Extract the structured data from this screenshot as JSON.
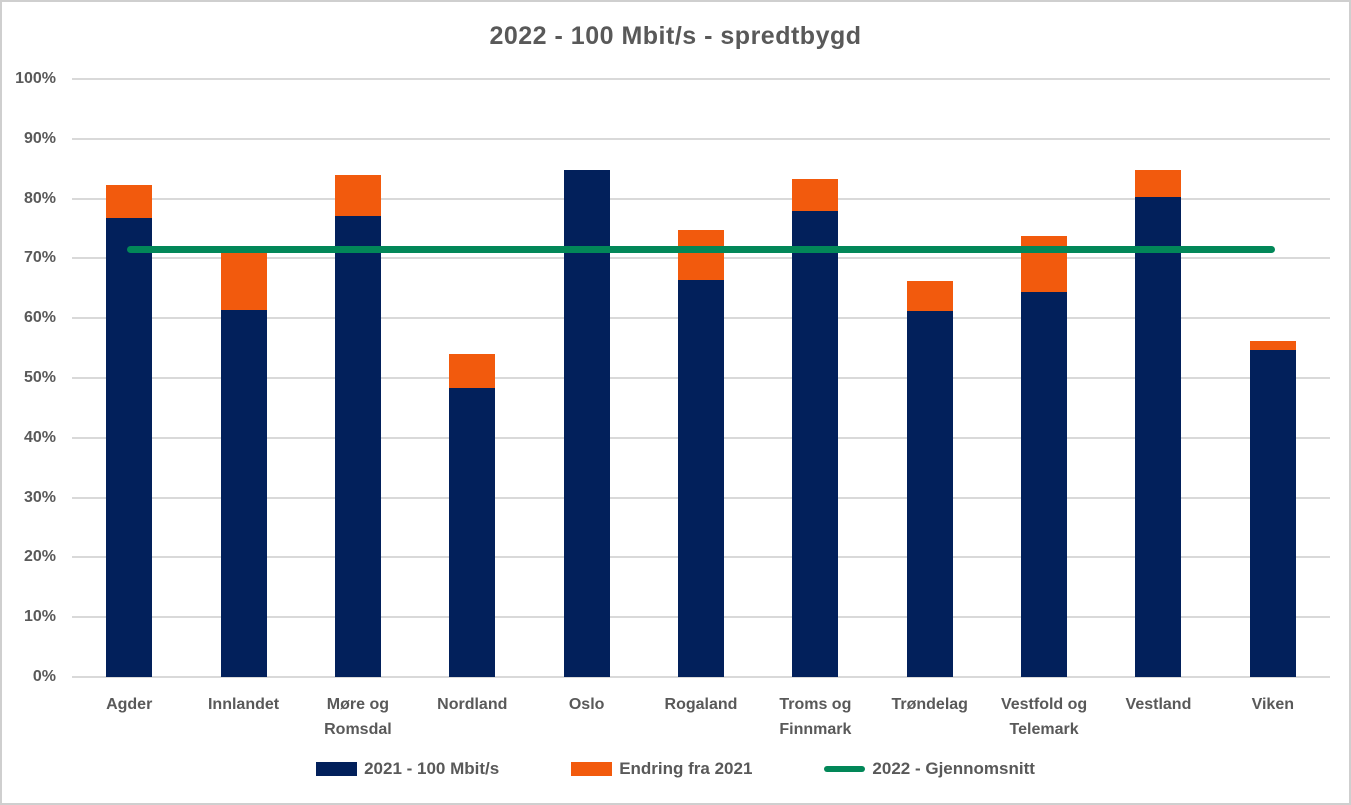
{
  "chart_data": {
    "type": "bar",
    "stacked": true,
    "title": "2022 - 100 Mbit/s - spredtbygd",
    "categories": [
      "Agder",
      "Innlandet",
      "Møre og Romsdal",
      "Nordland",
      "Oslo",
      "Rogaland",
      "Troms og Finnmark",
      "Trøndelag",
      "Vestfold og Telemark",
      "Vestland",
      "Viken"
    ],
    "series": [
      {
        "name": "2021 - 100 Mbit/s",
        "type": "bar",
        "color": "#02205b",
        "values": [
          76.8,
          61.3,
          77.1,
          48.4,
          84.7,
          66.4,
          77.9,
          61.2,
          64.4,
          80.2,
          54.7
        ]
      },
      {
        "name": "Endring fra 2021",
        "type": "bar",
        "color": "#f25a0d",
        "values": [
          5.5,
          10.0,
          6.9,
          5.6,
          0.0,
          8.3,
          5.4,
          5.1,
          9.4,
          4.6,
          1.5
        ]
      },
      {
        "name": "2022 - Gjennomsnitt",
        "type": "line",
        "color": "#028758",
        "value": 71.6
      }
    ],
    "totals_2022": [
      82.3,
      71.3,
      84.0,
      54.0,
      84.7,
      74.7,
      83.3,
      66.3,
      73.8,
      84.8,
      56.2
    ],
    "xlabel": "",
    "ylabel": "",
    "ylim": [
      0,
      100
    ],
    "ytick_step": 10,
    "ytick_labels": [
      "0%",
      "10%",
      "20%",
      "30%",
      "40%",
      "50%",
      "60%",
      "70%",
      "80%",
      "90%",
      "100%"
    ],
    "grid": "horizontal",
    "legend_position": "bottom"
  },
  "colors": {
    "grid": "#d9d9d9",
    "text": "#595959",
    "background": "#ffffff",
    "border": "#cfcfcf"
  }
}
